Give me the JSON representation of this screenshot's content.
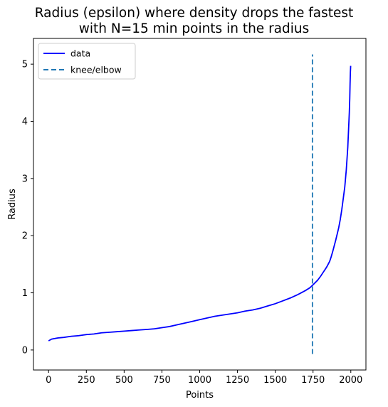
{
  "chart_data": {
    "type": "line",
    "title_lines": [
      "Radius (epsilon) where density drops the fastest",
      "with N=15 min points in the radius"
    ],
    "xlabel": "Points",
    "ylabel": "Radius",
    "xlim": [
      -100,
      2100
    ],
    "ylim": [
      -0.35,
      5.45
    ],
    "x_ticks": [
      0,
      250,
      500,
      750,
      1000,
      1250,
      1500,
      1750,
      2000
    ],
    "y_ticks": [
      0,
      1,
      2,
      3,
      4,
      5
    ],
    "grid": false,
    "legend_position": "upper-left",
    "series": [
      {
        "name": "data",
        "color": "#0000ff",
        "style": "solid",
        "x": [
          0,
          20,
          60,
          100,
          150,
          200,
          250,
          300,
          350,
          400,
          450,
          500,
          550,
          600,
          650,
          700,
          750,
          800,
          850,
          900,
          950,
          1000,
          1050,
          1100,
          1150,
          1200,
          1250,
          1300,
          1350,
          1400,
          1450,
          1500,
          1550,
          1600,
          1650,
          1700,
          1730,
          1750,
          1780,
          1800,
          1820,
          1840,
          1860,
          1870,
          1880,
          1890,
          1900,
          1910,
          1920,
          1930,
          1940,
          1950,
          1960,
          1965,
          1970,
          1975,
          1980,
          1985,
          1990,
          1993,
          1995,
          1997,
          1999
        ],
        "y": [
          0.16,
          0.19,
          0.21,
          0.22,
          0.24,
          0.25,
          0.27,
          0.28,
          0.3,
          0.31,
          0.32,
          0.33,
          0.34,
          0.35,
          0.36,
          0.37,
          0.39,
          0.41,
          0.44,
          0.47,
          0.5,
          0.53,
          0.56,
          0.59,
          0.61,
          0.63,
          0.65,
          0.68,
          0.7,
          0.73,
          0.77,
          0.81,
          0.86,
          0.91,
          0.97,
          1.04,
          1.09,
          1.14,
          1.22,
          1.29,
          1.37,
          1.45,
          1.55,
          1.63,
          1.72,
          1.82,
          1.92,
          2.03,
          2.14,
          2.28,
          2.45,
          2.65,
          2.85,
          3.0,
          3.15,
          3.35,
          3.55,
          3.85,
          4.15,
          4.4,
          4.65,
          4.85,
          4.97
        ]
      },
      {
        "name": "knee/elbow",
        "color": "#1f77b4",
        "style": "dashed",
        "x": [
          1746,
          1746
        ],
        "y": [
          -0.07,
          5.17
        ]
      }
    ]
  }
}
